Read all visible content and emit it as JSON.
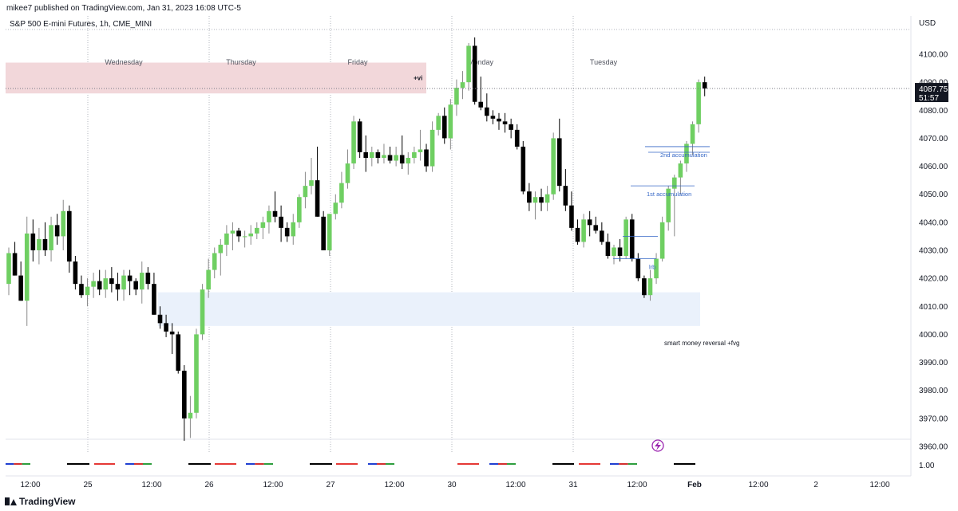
{
  "header": {
    "publisher": "mikee7 published on TradingView.com, Jan 31, 2023 16:08 UTC-5"
  },
  "footer": {
    "brand": "TradingView"
  },
  "colors": {
    "up": "#6fcf62",
    "down": "#000000",
    "resistance_zone": "#f2d7da",
    "support_zone": "#eaf1fb",
    "annotation": "#3567c6"
  },
  "chart_data": {
    "type": "candlestick",
    "title": "S&P 500 E-mini Futures, 1h, CME_MINI",
    "currency": "USD",
    "ylim": [
      3957,
      4117
    ],
    "y_ticks": [
      "4100.00",
      "4090.00",
      "4080.00",
      "4070.00",
      "4060.00",
      "4050.00",
      "4040.00",
      "4030.00",
      "4020.00",
      "4010.00",
      "4000.00",
      "3990.00",
      "3980.00",
      "3970.00",
      "3960.00"
    ],
    "indicator_tick": "1.00",
    "x_ticks": [
      "12:00",
      "25",
      "12:00",
      "26",
      "12:00",
      "27",
      "12:00",
      "30",
      "12:00",
      "31",
      "12:00",
      "Feb",
      "12:00",
      "2",
      "12:00"
    ],
    "day_labels": [
      "Wednesday",
      "Thursday",
      "Friday",
      "Monday",
      "Tuesday"
    ],
    "last_price": "4087.75",
    "countdown": "51:57",
    "zones": [
      {
        "label": "+vi",
        "from": 4086,
        "to": 4097,
        "type": "resistance"
      },
      {
        "label": "smart money reversal +fvg",
        "from": 4003,
        "to": 4015,
        "type": "support"
      }
    ],
    "levels": [
      {
        "label": "2nd accumulation",
        "price": 4067
      },
      {
        "label": "1st accumulation",
        "price": 4053
      },
      {
        "label": "",
        "price": 4035
      },
      {
        "label": "lrb",
        "price": 4027
      }
    ],
    "ohlc": [
      [
        4018,
        4031,
        4014,
        4029
      ],
      [
        4029,
        4033,
        4021,
        4021
      ],
      [
        4021,
        4026,
        4012,
        4012
      ],
      [
        4012,
        4042,
        4003,
        4036
      ],
      [
        4036,
        4041,
        4026,
        4030
      ],
      [
        4030,
        4038,
        4025,
        4034
      ],
      [
        4034,
        4040,
        4028,
        4030
      ],
      [
        4030,
        4042,
        4026,
        4039
      ],
      [
        4039,
        4043,
        4032,
        4035
      ],
      [
        4035,
        4048,
        4030,
        4044
      ],
      [
        4044,
        4046,
        4022,
        4026
      ],
      [
        4026,
        4028,
        4016,
        4018
      ],
      [
        4018,
        4021,
        4013,
        4014
      ],
      [
        4014,
        4020,
        4010,
        4017
      ],
      [
        4017,
        4022,
        4013,
        4019
      ],
      [
        4019,
        4023,
        4014,
        4016
      ],
      [
        4016,
        4023,
        4013,
        4020
      ],
      [
        4020,
        4024,
        4015,
        4018
      ],
      [
        4018,
        4022,
        4012,
        4016
      ],
      [
        4016,
        4023,
        4012,
        4021
      ],
      [
        4021,
        4023,
        4014,
        4019
      ],
      [
        4019,
        4020,
        4014,
        4016
      ],
      [
        4016,
        4026,
        4011,
        4022
      ],
      [
        4022,
        4024,
        4016,
        4018
      ],
      [
        4018,
        4022,
        4007,
        4007
      ],
      [
        4007,
        4010,
        4002,
        4004
      ],
      [
        4004,
        4007,
        3999,
        4001
      ],
      [
        4001,
        4004,
        3993,
        4000
      ],
      [
        4000,
        4001,
        3986,
        3987
      ],
      [
        3987,
        3989,
        3962,
        3970
      ],
      [
        3970,
        3978,
        3963,
        3972
      ],
      [
        3972,
        4002,
        3970,
        4000
      ],
      [
        4000,
        4018,
        3998,
        4016
      ],
      [
        4016,
        4027,
        4013,
        4023
      ],
      [
        4023,
        4031,
        4020,
        4029
      ],
      [
        4029,
        4034,
        4021,
        4032
      ],
      [
        4032,
        4039,
        4028,
        4036
      ],
      [
        4036,
        4040,
        4030,
        4037
      ],
      [
        4037,
        4038,
        4033,
        4035
      ],
      [
        4035,
        4037,
        4031,
        4035
      ],
      [
        4035,
        4039,
        4032,
        4036
      ],
      [
        4036,
        4040,
        4034,
        4038
      ],
      [
        4038,
        4042,
        4034,
        4040
      ],
      [
        4040,
        4046,
        4036,
        4044
      ],
      [
        4044,
        4051,
        4040,
        4042
      ],
      [
        4042,
        4046,
        4033,
        4038
      ],
      [
        4038,
        4040,
        4033,
        4035
      ],
      [
        4035,
        4043,
        4032,
        4040
      ],
      [
        4040,
        4050,
        4038,
        4049
      ],
      [
        4049,
        4058,
        4045,
        4053
      ],
      [
        4053,
        4063,
        4050,
        4055
      ],
      [
        4055,
        4067,
        4042,
        4042
      ],
      [
        4042,
        4044,
        4030,
        4030
      ],
      [
        4030,
        4043,
        4028,
        4043
      ],
      [
        4043,
        4050,
        4041,
        4047
      ],
      [
        4047,
        4058,
        4045,
        4054
      ],
      [
        4054,
        4066,
        4052,
        4061
      ],
      [
        4061,
        4078,
        4059,
        4076
      ],
      [
        4076,
        4077,
        4063,
        4065
      ],
      [
        4065,
        4071,
        4058,
        4063
      ],
      [
        4063,
        4067,
        4060,
        4065
      ],
      [
        4065,
        4066,
        4061,
        4063
      ],
      [
        4063,
        4068,
        4061,
        4064
      ],
      [
        4064,
        4067,
        4061,
        4062
      ],
      [
        4062,
        4067,
        4060,
        4064
      ],
      [
        4064,
        4071,
        4059,
        4061
      ],
      [
        4061,
        4065,
        4057,
        4063
      ],
      [
        4063,
        4067,
        4061,
        4065
      ],
      [
        4065,
        4073,
        4062,
        4066
      ],
      [
        4066,
        4068,
        4058,
        4060
      ],
      [
        4060,
        4076,
        4058,
        4073
      ],
      [
        4073,
        4079,
        4071,
        4078
      ],
      [
        4078,
        4081,
        4068,
        4070
      ],
      [
        4070,
        4084,
        4066,
        4082
      ],
      [
        4082,
        4091,
        4078,
        4088
      ],
      [
        4088,
        4094,
        4084,
        4090
      ],
      [
        4090,
        4104,
        4087,
        4103
      ],
      [
        4103,
        4106,
        4082,
        4083
      ],
      [
        4083,
        4092,
        4080,
        4081
      ],
      [
        4081,
        4086,
        4076,
        4078
      ],
      [
        4078,
        4080,
        4075,
        4077
      ],
      [
        4077,
        4079,
        4073,
        4076
      ],
      [
        4076,
        4079,
        4072,
        4075
      ],
      [
        4075,
        4077,
        4070,
        4073
      ],
      [
        4073,
        4075,
        4066,
        4067
      ],
      [
        4067,
        4069,
        4050,
        4051
      ],
      [
        4051,
        4054,
        4044,
        4047
      ],
      [
        4047,
        4051,
        4041,
        4049
      ],
      [
        4049,
        4052,
        4044,
        4047
      ],
      [
        4047,
        4053,
        4044,
        4050
      ],
      [
        4050,
        4072,
        4048,
        4070
      ],
      [
        4070,
        4077,
        4051,
        4053
      ],
      [
        4053,
        4059,
        4044,
        4046
      ],
      [
        4046,
        4051,
        4037,
        4038
      ],
      [
        4038,
        4041,
        4032,
        4033
      ],
      [
        4033,
        4043,
        4031,
        4041
      ],
      [
        4041,
        4044,
        4035,
        4039
      ],
      [
        4039,
        4042,
        4036,
        4037
      ],
      [
        4037,
        4040,
        4032,
        4033
      ],
      [
        4033,
        4036,
        4027,
        4028
      ],
      [
        4028,
        4032,
        4025,
        4031
      ],
      [
        4031,
        4034,
        4026,
        4028
      ],
      [
        4028,
        4042,
        4027,
        4041
      ],
      [
        4041,
        4043,
        4026,
        4027
      ],
      [
        4027,
        4029,
        4019,
        4020
      ],
      [
        4020,
        4021,
        4013,
        4014
      ],
      [
        4014,
        4023,
        4012,
        4020
      ],
      [
        4020,
        4029,
        4018,
        4027
      ],
      [
        4027,
        4042,
        4026,
        4040
      ],
      [
        4040,
        4053,
        4037,
        4052
      ],
      [
        4052,
        4057,
        4035,
        4056
      ],
      [
        4056,
        4062,
        4050,
        4061
      ],
      [
        4061,
        4069,
        4058,
        4068
      ],
      [
        4068,
        4076,
        4064,
        4075
      ],
      [
        4075,
        4091,
        4072,
        4090
      ],
      [
        4090,
        4092,
        4085,
        4087.75
      ]
    ]
  }
}
